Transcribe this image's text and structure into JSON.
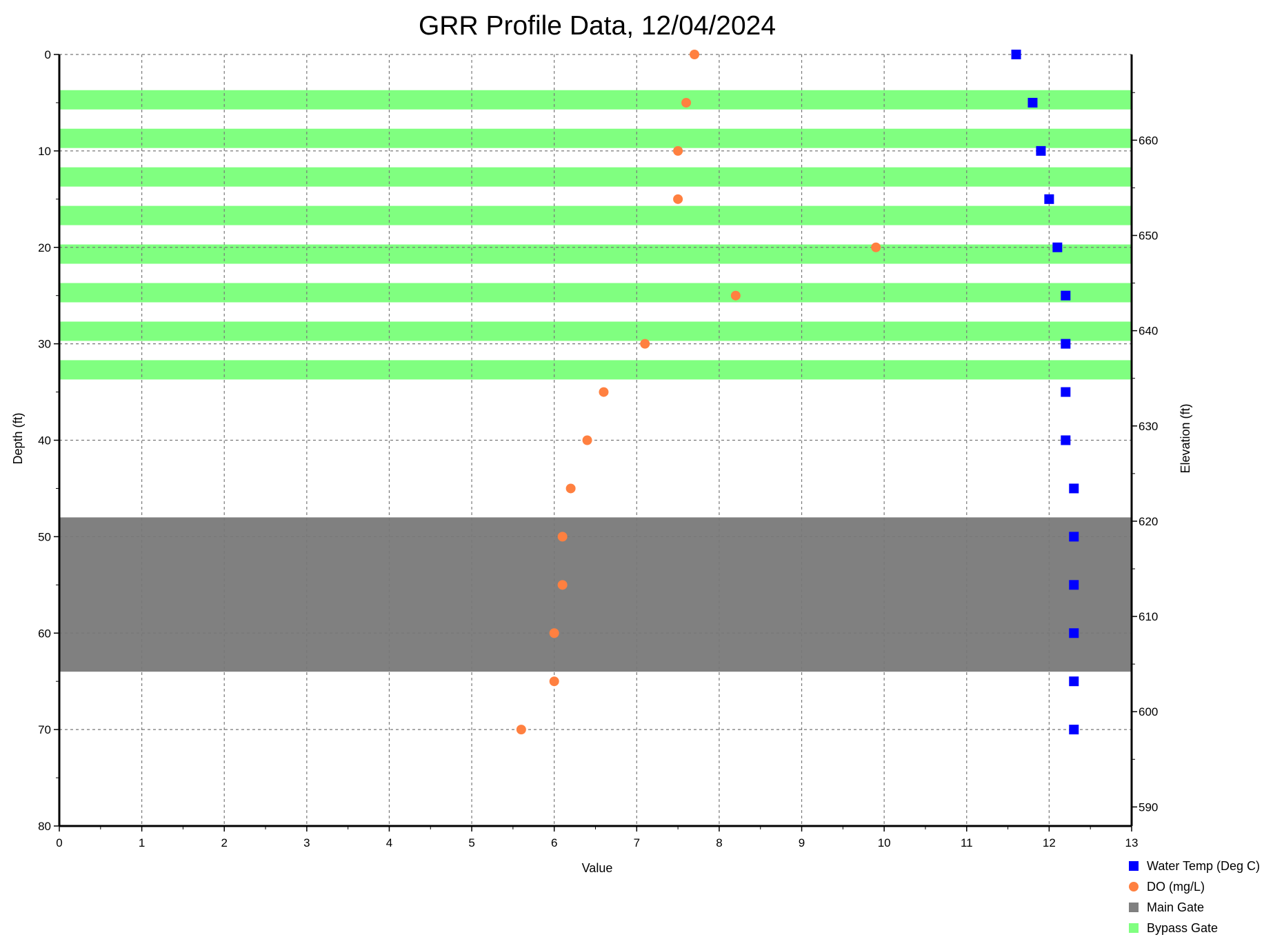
{
  "chart_data": {
    "type": "scatter",
    "title": "GRR Profile Data, 12/04/2024",
    "xlabel": "Value",
    "ylabel": "Depth (ft)",
    "y2label": "Elevation (ft)",
    "xlim": [
      0,
      13
    ],
    "ylim": [
      0,
      80
    ],
    "y_inverted": true,
    "y2lim": [
      669,
      588
    ],
    "grid": true,
    "legend_position": "bottom-right",
    "x_ticks": [
      0,
      1,
      2,
      3,
      4,
      5,
      6,
      7,
      8,
      9,
      10,
      11,
      12,
      13
    ],
    "y_ticks": [
      0,
      10,
      20,
      30,
      40,
      50,
      60,
      70,
      80
    ],
    "y2_ticks": [
      660,
      650,
      640,
      630,
      620,
      610,
      600,
      590
    ],
    "series": [
      {
        "name": "Water Temp (Deg C)",
        "marker": "square",
        "color": "#0000ff",
        "points": [
          [
            11.6,
            0
          ],
          [
            11.8,
            5
          ],
          [
            11.9,
            10
          ],
          [
            12.0,
            15
          ],
          [
            12.1,
            20
          ],
          [
            12.2,
            25
          ],
          [
            12.2,
            30
          ],
          [
            12.2,
            35
          ],
          [
            12.2,
            40
          ],
          [
            12.3,
            45
          ],
          [
            12.3,
            50
          ],
          [
            12.3,
            55
          ],
          [
            12.3,
            60
          ],
          [
            12.3,
            65
          ],
          [
            12.3,
            70
          ]
        ]
      },
      {
        "name": "DO (mg/L)",
        "marker": "circle",
        "color": "#ff8040",
        "points": [
          [
            7.7,
            0
          ],
          [
            7.6,
            5
          ],
          [
            7.5,
            10
          ],
          [
            7.5,
            15
          ],
          [
            9.9,
            20
          ],
          [
            8.2,
            25
          ],
          [
            7.1,
            30
          ],
          [
            6.6,
            35
          ],
          [
            6.4,
            40
          ],
          [
            6.2,
            45
          ],
          [
            6.1,
            50
          ],
          [
            6.1,
            55
          ],
          [
            6.0,
            60
          ],
          [
            6.0,
            65
          ],
          [
            5.6,
            70
          ]
        ]
      }
    ],
    "bands": [
      {
        "name": "Main Gate",
        "color": "#808080",
        "ranges": [
          [
            48,
            64
          ]
        ]
      },
      {
        "name": "Bypass Gate",
        "color": "#80ff80",
        "ranges": [
          [
            3.7,
            5.7
          ],
          [
            7.7,
            9.7
          ],
          [
            11.7,
            13.7
          ],
          [
            15.7,
            17.7
          ],
          [
            19.7,
            21.7
          ],
          [
            23.7,
            25.7
          ],
          [
            27.7,
            29.7
          ],
          [
            31.7,
            33.7
          ]
        ]
      }
    ],
    "legend": [
      "Water Temp (Deg C)",
      "DO (mg/L)",
      "Main Gate",
      "Bypass Gate"
    ]
  }
}
